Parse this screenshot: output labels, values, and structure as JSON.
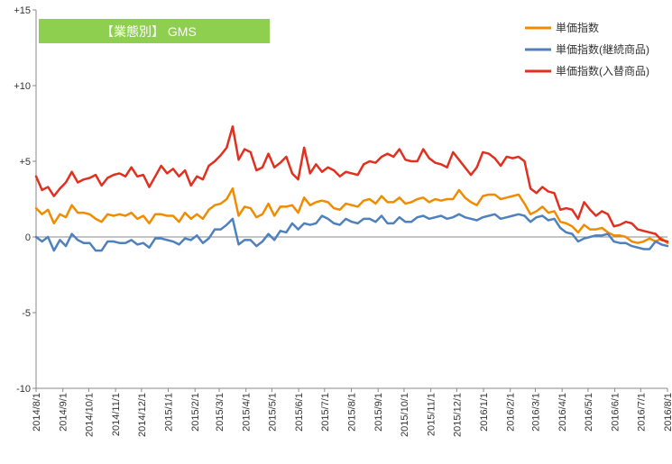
{
  "chart_data": {
    "type": "line",
    "title": "【業態別】 GMS",
    "title_box_color": "#8fcf50",
    "title_text_color": "#ffffff",
    "ylim": [
      -10,
      15
    ],
    "yticks": [
      {
        "value": 15,
        "label": "+15"
      },
      {
        "value": 10,
        "label": "+10"
      },
      {
        "value": 5,
        "label": "+5"
      },
      {
        "value": 0,
        "label": "0"
      },
      {
        "value": -5,
        "label": "-5"
      },
      {
        "value": -10,
        "label": "-10"
      }
    ],
    "x_start": "2014-08-01",
    "x_end": "2016-08-01",
    "xticks": [
      "2014/8/1",
      "2014/9/1",
      "2014/10/1",
      "2014/11/1",
      "2014/12/1",
      "2015/1/1",
      "2015/2/1",
      "2015/3/1",
      "2015/4/1",
      "2015/5/1",
      "2015/6/1",
      "2015/7/1",
      "2015/8/1",
      "2015/9/1",
      "2015/10/1",
      "2015/11/1",
      "2015/12/1",
      "2016/1/1",
      "2016/2/1",
      "2016/3/1",
      "2016/4/1",
      "2016/5/1",
      "2016/6/1",
      "2016/7/1",
      "2016/8/1"
    ],
    "grid": false,
    "legend_position": "top-right",
    "series": [
      {
        "name": "単価指数",
        "color": "#f08c00",
        "values": [
          1.9,
          1.5,
          1.8,
          0.9,
          1.5,
          1.3,
          2.1,
          1.6,
          1.6,
          1.5,
          1.2,
          1.0,
          1.5,
          1.4,
          1.5,
          1.4,
          1.6,
          1.2,
          1.4,
          0.9,
          1.5,
          1.5,
          1.4,
          1.4,
          1.0,
          1.6,
          1.2,
          1.5,
          1.2,
          1.8,
          2.1,
          2.2,
          2.5,
          3.2,
          1.4,
          2.0,
          1.9,
          1.3,
          1.5,
          2.2,
          1.4,
          2.0,
          2.0,
          2.1,
          1.6,
          2.6,
          2.1,
          2.3,
          2.4,
          2.3,
          1.9,
          1.8,
          2.2,
          2.1,
          2.0,
          2.4,
          2.5,
          2.2,
          2.7,
          2.3,
          2.3,
          2.6,
          2.2,
          2.3,
          2.5,
          2.6,
          2.3,
          2.5,
          2.4,
          2.5,
          2.5,
          3.1,
          2.6,
          2.3,
          2.1,
          2.7,
          2.8,
          2.8,
          2.5,
          2.6,
          2.7,
          2.8,
          2.2,
          1.5,
          1.7,
          2.0,
          1.6,
          1.7,
          1.0,
          0.9,
          0.7,
          0.3,
          0.8,
          0.5,
          0.5,
          0.6,
          0.3,
          0.1,
          0.1,
          0.0,
          -0.3,
          -0.4,
          -0.3,
          -0.1,
          -0.3,
          -0.1,
          -0.4
        ]
      },
      {
        "name": "単価指数(継続商品)",
        "color": "#4f81bd",
        "values": [
          0.0,
          -0.3,
          0.0,
          -0.9,
          -0.2,
          -0.6,
          0.2,
          -0.2,
          -0.4,
          -0.4,
          -0.9,
          -0.9,
          -0.3,
          -0.3,
          -0.4,
          -0.4,
          -0.2,
          -0.5,
          -0.4,
          -0.7,
          -0.1,
          -0.1,
          -0.2,
          -0.3,
          -0.5,
          -0.1,
          -0.2,
          0.1,
          -0.4,
          -0.1,
          0.5,
          0.5,
          0.8,
          1.2,
          -0.5,
          -0.2,
          -0.2,
          -0.6,
          -0.3,
          0.2,
          -0.2,
          0.4,
          0.3,
          0.9,
          0.5,
          0.9,
          0.8,
          0.9,
          1.4,
          1.2,
          0.9,
          0.8,
          1.2,
          1.0,
          0.9,
          1.2,
          1.2,
          1.0,
          1.4,
          0.9,
          0.9,
          1.3,
          1.0,
          1.0,
          1.3,
          1.4,
          1.2,
          1.3,
          1.4,
          1.2,
          1.3,
          1.5,
          1.3,
          1.2,
          1.1,
          1.3,
          1.4,
          1.5,
          1.2,
          1.3,
          1.4,
          1.5,
          1.4,
          1.0,
          1.3,
          1.4,
          1.1,
          1.2,
          0.6,
          0.3,
          0.2,
          -0.3,
          -0.1,
          0.0,
          0.1,
          0.1,
          0.2,
          -0.3,
          -0.4,
          -0.4,
          -0.6,
          -0.7,
          -0.8,
          -0.8,
          -0.3,
          -0.5,
          -0.6
        ]
      },
      {
        "name": "単価指数(入替商品)",
        "color": "#e03020",
        "values": [
          4.0,
          3.1,
          3.3,
          2.7,
          3.2,
          3.6,
          4.3,
          3.6,
          3.8,
          3.9,
          4.1,
          3.4,
          3.9,
          4.1,
          4.2,
          4.0,
          4.6,
          4.0,
          4.1,
          3.3,
          4.0,
          4.7,
          4.2,
          4.5,
          4.0,
          4.4,
          3.4,
          4.0,
          3.8,
          4.7,
          5.0,
          5.4,
          5.9,
          7.3,
          5.1,
          5.8,
          5.6,
          4.4,
          4.6,
          5.5,
          4.6,
          4.9,
          5.3,
          4.2,
          3.8,
          5.9,
          4.2,
          4.8,
          4.3,
          4.6,
          4.4,
          4.0,
          4.3,
          4.2,
          4.1,
          4.8,
          5.0,
          4.9,
          5.3,
          5.5,
          5.3,
          5.8,
          5.1,
          5.0,
          5.0,
          5.8,
          5.2,
          4.9,
          4.8,
          4.6,
          5.6,
          5.1,
          4.6,
          4.1,
          4.6,
          5.6,
          5.5,
          5.2,
          4.7,
          5.3,
          5.2,
          5.3,
          5.0,
          3.2,
          2.9,
          3.3,
          3.0,
          2.9,
          1.8,
          1.9,
          1.8,
          1.2,
          2.3,
          1.8,
          1.4,
          1.7,
          1.5,
          0.7,
          0.8,
          1.0,
          0.9,
          0.5,
          0.4,
          0.3,
          0.2,
          -0.2,
          -0.3
        ]
      }
    ]
  }
}
